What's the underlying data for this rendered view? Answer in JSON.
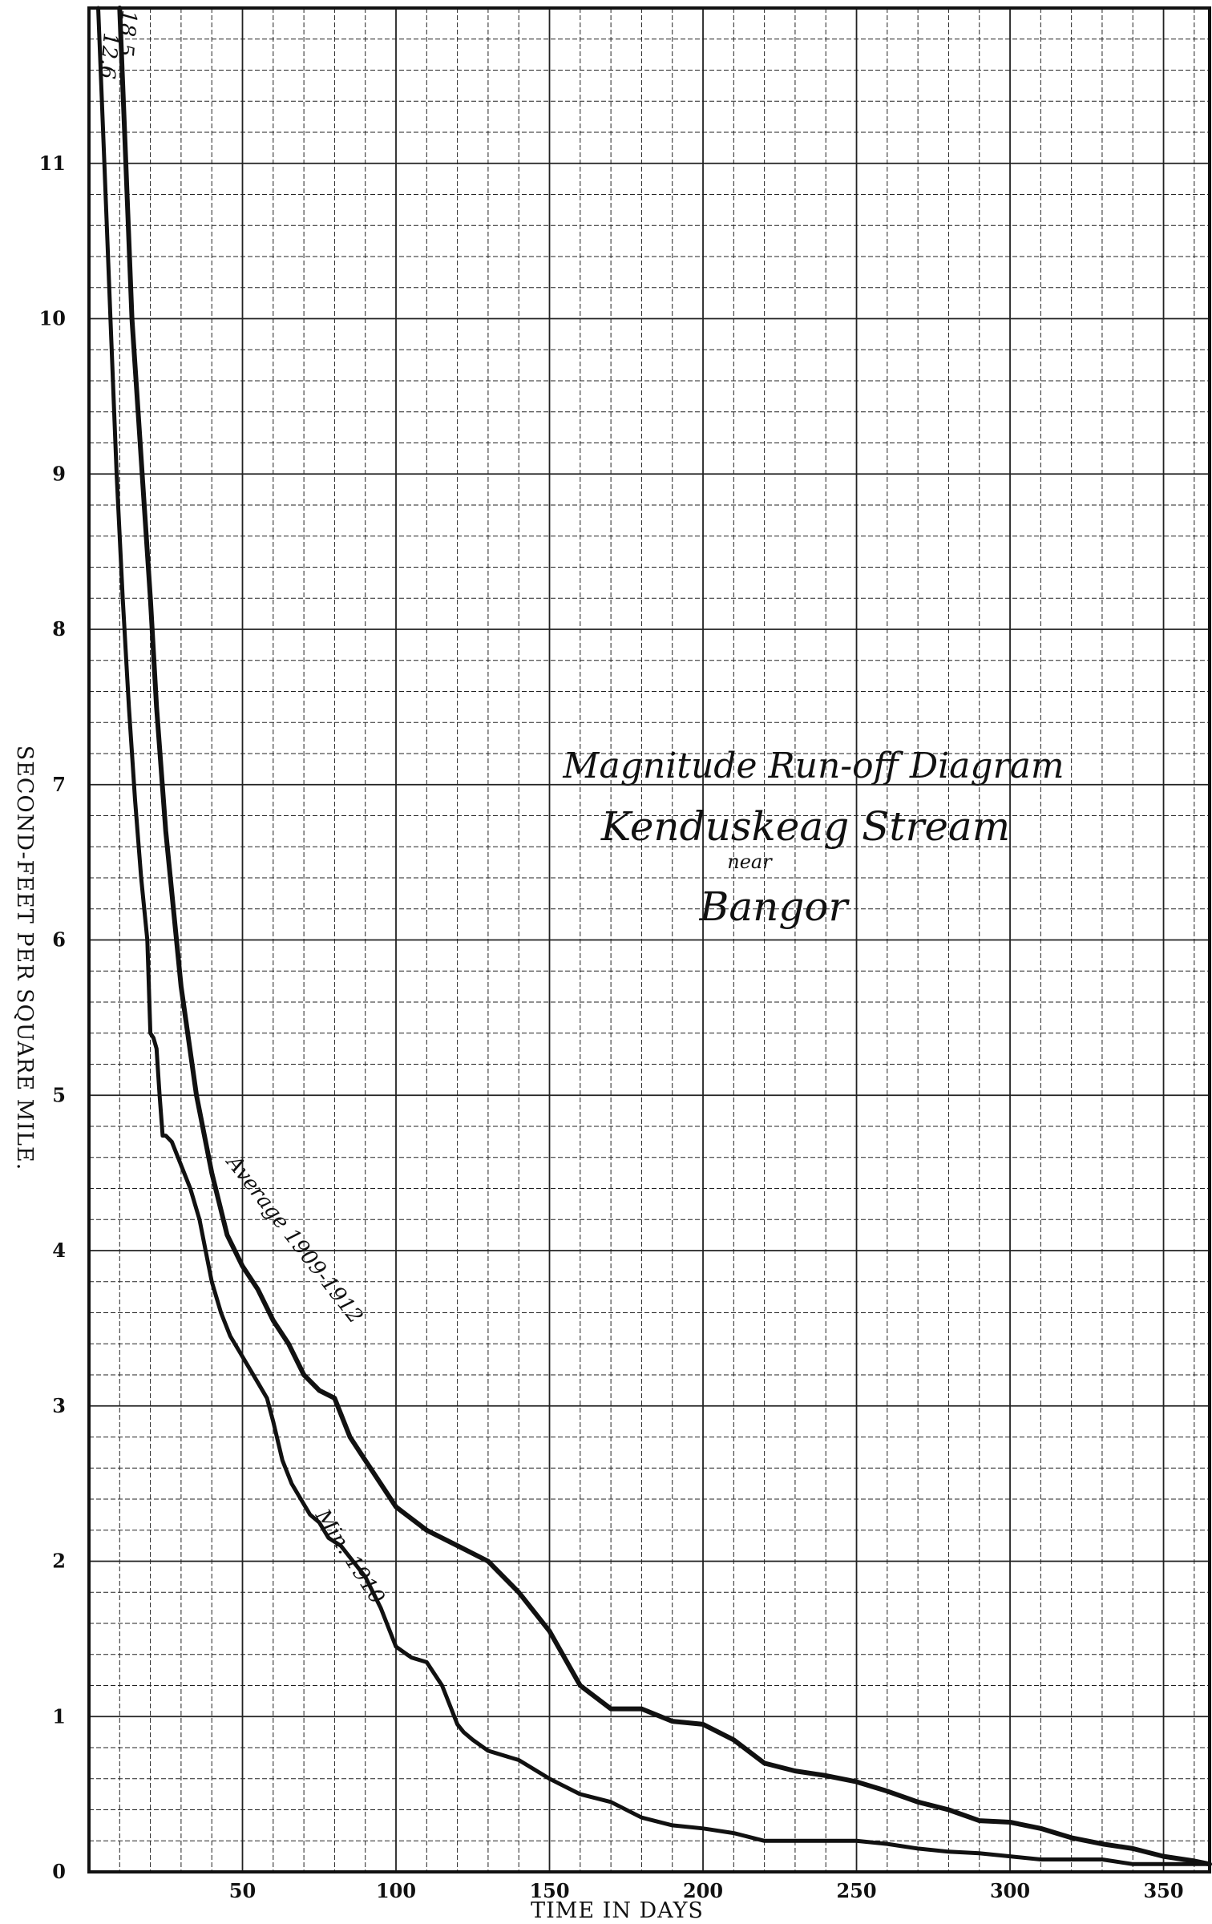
{
  "chart_data": {
    "type": "line",
    "title": "Magnitude Run-off Diagram",
    "subtitle": "Kenduskeag Stream near Bangor",
    "annotation_lines": [
      "Magnitude Run-off Diagram",
      "Kenduskeag Stream",
      "near",
      "Bangor"
    ],
    "xlabel": "TIME IN DAYS",
    "ylabel": "SECOND-FEET PER SQUARE MILE.",
    "xlim": [
      0,
      365
    ],
    "ylim": [
      0,
      12
    ],
    "xticks": [
      50,
      100,
      150,
      200,
      250,
      300,
      350
    ],
    "yticks": [
      0,
      1,
      2,
      3,
      4,
      5,
      6,
      7,
      8,
      9,
      10,
      11
    ],
    "grid": true,
    "top_labels": [
      "18.5",
      "12.6"
    ],
    "series": [
      {
        "name": "Average 1909-1912",
        "label_text": "Average 1909-1912",
        "x": [
          10,
          12,
          14,
          16,
          18,
          20,
          22,
          25,
          30,
          35,
          40,
          45,
          50,
          55,
          60,
          65,
          70,
          75,
          80,
          85,
          90,
          100,
          110,
          120,
          130,
          140,
          150,
          160,
          170,
          180,
          190,
          200,
          210,
          220,
          230,
          240,
          250,
          260,
          270,
          280,
          290,
          300,
          310,
          320,
          330,
          340,
          350,
          360,
          365
        ],
        "y": [
          12,
          11,
          10,
          9.4,
          8.8,
          8.2,
          7.5,
          6.7,
          5.7,
          5.0,
          4.5,
          4.1,
          3.9,
          3.75,
          3.55,
          3.4,
          3.2,
          3.1,
          3.05,
          2.8,
          2.65,
          2.35,
          2.2,
          2.1,
          2.0,
          1.8,
          1.55,
          1.2,
          1.05,
          1.05,
          0.97,
          0.95,
          0.85,
          0.7,
          0.65,
          0.62,
          0.58,
          0.52,
          0.45,
          0.4,
          0.33,
          0.32,
          0.28,
          0.22,
          0.18,
          0.15,
          0.1,
          0.07,
          0.05
        ]
      },
      {
        "name": "Min. 1910",
        "label_text": "Min. 1910",
        "x": [
          3,
          5,
          7,
          9,
          11,
          13,
          15,
          17,
          19,
          20,
          21,
          22,
          23,
          24,
          25,
          27,
          30,
          33,
          36,
          38,
          40,
          43,
          46,
          49,
          52,
          55,
          58,
          60,
          63,
          66,
          69,
          72,
          75,
          78,
          82,
          86,
          90,
          95,
          100,
          105,
          110,
          115,
          120,
          122,
          125,
          130,
          140,
          150,
          160,
          170,
          180,
          190,
          200,
          210,
          220,
          230,
          240,
          250,
          260,
          270,
          280,
          290,
          300,
          310,
          320,
          330,
          340,
          350,
          365
        ],
        "y": [
          12,
          11.0,
          10.0,
          9.0,
          8.2,
          7.5,
          6.9,
          6.4,
          6.0,
          5.4,
          5.37,
          5.3,
          5.0,
          4.74,
          4.74,
          4.7,
          4.55,
          4.4,
          4.2,
          4.0,
          3.8,
          3.6,
          3.45,
          3.35,
          3.25,
          3.15,
          3.05,
          2.9,
          2.65,
          2.5,
          2.4,
          2.3,
          2.25,
          2.15,
          2.1,
          2.0,
          1.9,
          1.7,
          1.45,
          1.38,
          1.35,
          1.2,
          0.95,
          0.9,
          0.85,
          0.78,
          0.72,
          0.6,
          0.5,
          0.45,
          0.35,
          0.3,
          0.28,
          0.25,
          0.2,
          0.2,
          0.2,
          0.2,
          0.18,
          0.15,
          0.13,
          0.12,
          0.1,
          0.08,
          0.08,
          0.08,
          0.05,
          0.05,
          0.05
        ]
      }
    ]
  }
}
